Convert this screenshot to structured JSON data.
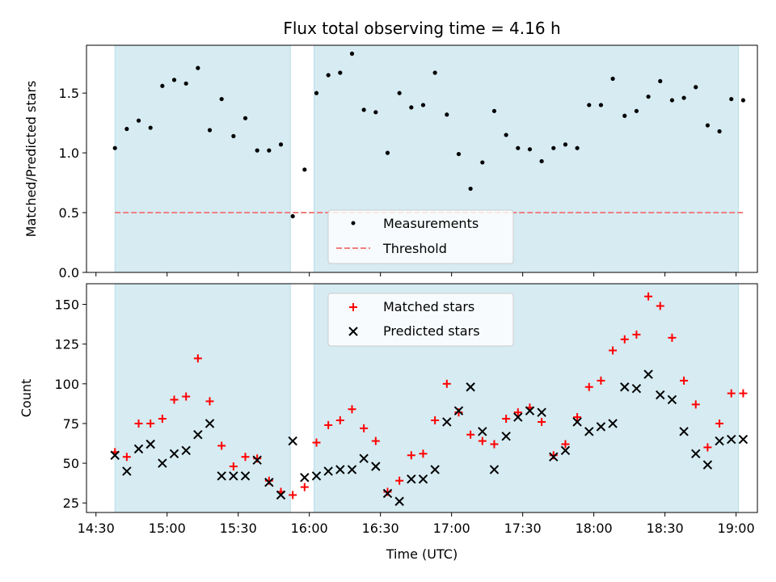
{
  "chart_data": [
    {
      "type": "scatter",
      "title": "Flux total observing time = 4.16 h",
      "xlabel": "",
      "ylabel": "Matched/Predicted stars",
      "xlim": [
        "14:26",
        "19:09"
      ],
      "ylim": [
        0,
        1.9
      ],
      "yticks": [
        "0.0",
        "0.5",
        "1.0",
        "1.5"
      ],
      "shaded_intervals": [
        [
          "14:38",
          "15:52"
        ],
        [
          "16:02",
          "19:01"
        ]
      ],
      "threshold": {
        "name": "Threshold",
        "value": 0.5,
        "color": "#f08080"
      },
      "legend": {
        "placement": "lower center",
        "entries": [
          "Measurements",
          "Threshold"
        ]
      },
      "series": [
        {
          "name": "Measurements",
          "color": "#000000",
          "x": [
            "14:38",
            "14:43",
            "14:48",
            "14:53",
            "14:58",
            "15:03",
            "15:08",
            "15:13",
            "15:18",
            "15:23",
            "15:28",
            "15:33",
            "15:38",
            "15:43",
            "15:48",
            "15:53",
            "15:58",
            "16:03",
            "16:08",
            "16:13",
            "16:18",
            "16:23",
            "16:28",
            "16:33",
            "16:38",
            "16:43",
            "16:48",
            "16:53",
            "16:58",
            "17:03",
            "17:08",
            "17:13",
            "17:18",
            "17:23",
            "17:28",
            "17:33",
            "17:38",
            "17:43",
            "17:48",
            "17:53",
            "17:58",
            "18:03",
            "18:08",
            "18:13",
            "18:18",
            "18:23",
            "18:28",
            "18:33",
            "18:38",
            "18:43",
            "18:48",
            "18:53",
            "18:58",
            "19:03"
          ],
          "y": [
            1.04,
            1.2,
            1.27,
            1.21,
            1.56,
            1.61,
            1.58,
            1.71,
            1.19,
            1.45,
            1.14,
            1.29,
            1.02,
            1.02,
            1.07,
            0.47,
            0.86,
            1.5,
            1.65,
            1.67,
            1.83,
            1.36,
            1.34,
            1.0,
            1.5,
            1.38,
            1.4,
            1.67,
            1.32,
            0.99,
            0.7,
            0.92,
            1.35,
            1.15,
            1.04,
            1.03,
            0.93,
            1.04,
            1.07,
            1.04,
            1.4,
            1.4,
            1.62,
            1.31,
            1.35,
            1.47,
            1.6,
            1.44,
            1.46,
            1.55,
            1.23,
            1.18,
            1.45,
            1.44
          ]
        }
      ]
    },
    {
      "type": "scatter",
      "title": "",
      "xlabel": "Time (UTC)",
      "ylabel": "Count",
      "xlim": [
        "14:26",
        "19:09"
      ],
      "ylim": [
        19,
        163
      ],
      "xticks": [
        "14:30",
        "15:00",
        "15:30",
        "16:00",
        "16:30",
        "17:00",
        "17:30",
        "18:00",
        "18:30",
        "19:00"
      ],
      "yticks": [
        "25",
        "50",
        "75",
        "100",
        "125",
        "150"
      ],
      "shaded_intervals": [
        [
          "14:38",
          "15:52"
        ],
        [
          "16:02",
          "19:01"
        ]
      ],
      "legend": {
        "placement": "upper center",
        "entries": [
          "Matched stars",
          "Predicted stars"
        ]
      },
      "series": [
        {
          "name": "Matched stars",
          "color": "#ff0000",
          "marker": "plus",
          "x": [
            "14:38",
            "14:43",
            "14:48",
            "14:53",
            "14:58",
            "15:03",
            "15:08",
            "15:13",
            "15:18",
            "15:23",
            "15:28",
            "15:33",
            "15:38",
            "15:43",
            "15:48",
            "15:53",
            "15:58",
            "16:03",
            "16:08",
            "16:13",
            "16:18",
            "16:23",
            "16:28",
            "16:33",
            "16:38",
            "16:43",
            "16:48",
            "16:53",
            "16:58",
            "17:03",
            "17:08",
            "17:13",
            "17:18",
            "17:23",
            "17:28",
            "17:33",
            "17:38",
            "17:43",
            "17:48",
            "17:53",
            "17:58",
            "18:03",
            "18:08",
            "18:13",
            "18:18",
            "18:23",
            "18:28",
            "18:33",
            "18:38",
            "18:43",
            "18:48",
            "18:53",
            "18:58",
            "19:03"
          ],
          "y": [
            57,
            54,
            75,
            75,
            78,
            90,
            92,
            116,
            89,
            61,
            48,
            54,
            53,
            39,
            32,
            30,
            35,
            63,
            74,
            77,
            84,
            72,
            64,
            32,
            39,
            55,
            56,
            77,
            100,
            82,
            68,
            64,
            62,
            78,
            82,
            85,
            76,
            55,
            62,
            79,
            98,
            102,
            121,
            128,
            131,
            155,
            149,
            129,
            102,
            87,
            60,
            75,
            94,
            94
          ]
        },
        {
          "name": "Predicted stars",
          "color": "#000000",
          "marker": "x",
          "x": [
            "14:38",
            "14:43",
            "14:48",
            "14:53",
            "14:58",
            "15:03",
            "15:08",
            "15:13",
            "15:18",
            "15:23",
            "15:28",
            "15:33",
            "15:38",
            "15:43",
            "15:48",
            "15:53",
            "15:58",
            "16:03",
            "16:08",
            "16:13",
            "16:18",
            "16:23",
            "16:28",
            "16:33",
            "16:38",
            "16:43",
            "16:48",
            "16:53",
            "16:58",
            "17:03",
            "17:08",
            "17:13",
            "17:18",
            "17:23",
            "17:28",
            "17:33",
            "17:38",
            "17:43",
            "17:48",
            "17:53",
            "17:58",
            "18:03",
            "18:08",
            "18:13",
            "18:18",
            "18:23",
            "18:28",
            "18:33",
            "18:38",
            "18:43",
            "18:48",
            "18:53",
            "18:58",
            "19:03"
          ],
          "y": [
            55,
            45,
            59,
            62,
            50,
            56,
            58,
            68,
            75,
            42,
            42,
            42,
            52,
            38,
            30,
            64,
            41,
            42,
            45,
            46,
            46,
            53,
            48,
            31,
            26,
            40,
            40,
            46,
            76,
            83,
            98,
            70,
            46,
            67,
            79,
            83,
            82,
            54,
            58,
            76,
            70,
            73,
            75,
            98,
            97,
            106,
            93,
            90,
            70,
            56,
            49,
            64,
            65,
            65
          ]
        }
      ]
    }
  ]
}
